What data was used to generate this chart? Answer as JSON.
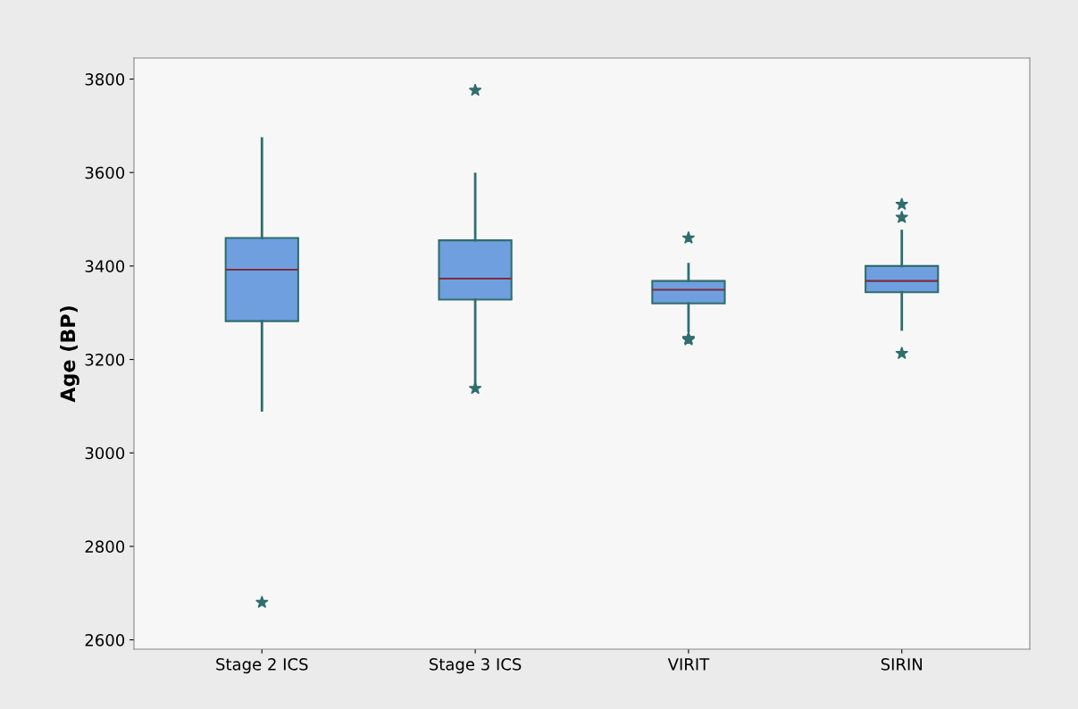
{
  "chart_data": {
    "type": "box",
    "ylabel": "Age (BP)",
    "categories": [
      "Stage 2 ICS",
      "Stage 3 ICS",
      "VIRIT",
      "SIRIN"
    ],
    "boxes": [
      {
        "low": 3091,
        "q1": 3282,
        "median": 3392,
        "q3": 3460,
        "high": 3673,
        "outliers": [
          2680
        ]
      },
      {
        "low": 3145,
        "q1": 3328,
        "median": 3373,
        "q3": 3455,
        "high": 3597,
        "outliers": [
          3776,
          3138
        ]
      },
      {
        "low": 3261,
        "q1": 3320,
        "median": 3349,
        "q3": 3368,
        "high": 3404,
        "outliers": [
          3460,
          3245,
          3242,
          3244
        ]
      },
      {
        "low": 3264,
        "q1": 3344,
        "median": 3368,
        "q3": 3400,
        "high": 3475,
        "outliers": [
          3532,
          3504,
          3213
        ]
      }
    ],
    "color": "#6f9fdf",
    "ylim": [
      2580,
      3845
    ],
    "yticks": [
      2600,
      2800,
      3000,
      3200,
      3400,
      3600,
      3800
    ],
    "marker": "star",
    "grid": false,
    "legend": false
  }
}
